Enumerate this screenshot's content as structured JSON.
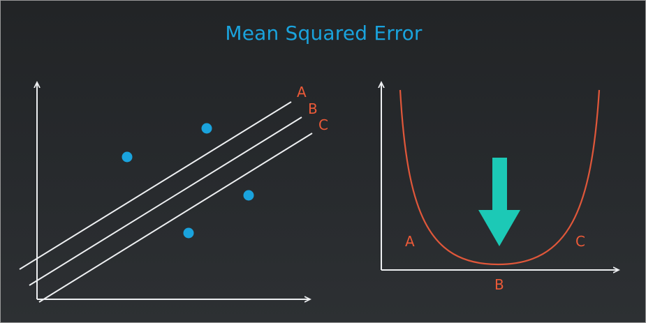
{
  "title": "Mean Squared Error",
  "colors": {
    "title": "#1aa3dd",
    "points": "#1aa3dd",
    "curve": "#e0573a",
    "labels": "#ec5a38",
    "arrow": "#1cc9b6",
    "axes": "#eef0f2"
  },
  "left_plot": {
    "line_labels": [
      "A",
      "B",
      "C"
    ],
    "point_count": 4
  },
  "right_plot": {
    "curve_labels": {
      "left": "A",
      "bottom": "B",
      "right": "C"
    }
  }
}
